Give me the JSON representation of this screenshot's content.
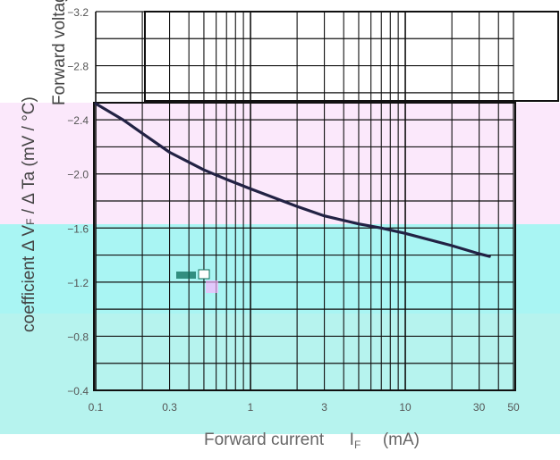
{
  "chart_data": {
    "type": "line",
    "xscale": "log",
    "xlim": [
      0.1,
      50
    ],
    "ylim": [
      -3.2,
      -0.4
    ],
    "x_ticks": [
      {
        "value": 0.1,
        "label": "0.1"
      },
      {
        "value": 0.3,
        "label": "0.3"
      },
      {
        "value": 1,
        "label": "1"
      },
      {
        "value": 3,
        "label": "3"
      },
      {
        "value": 10,
        "label": "10"
      },
      {
        "value": 30,
        "label": "30"
      },
      {
        "value": 50,
        "label": "50"
      }
    ],
    "y_ticks": [
      {
        "value": -3.2,
        "label": "−3.2"
      },
      {
        "value": -2.8,
        "label": "−2.8"
      },
      {
        "value": -2.4,
        "label": "−2.4"
      },
      {
        "value": -2.0,
        "label": "−2.0"
      },
      {
        "value": -1.6,
        "label": "−1.6"
      },
      {
        "value": -1.2,
        "label": "−1.2"
      },
      {
        "value": -0.8,
        "label": "−0.8"
      },
      {
        "value": -0.4,
        "label": "−0.4"
      }
    ],
    "xlabel": {
      "main": "Forward current",
      "symbol": "I",
      "sub": "F",
      "unit": "(mA)"
    },
    "ylabel": {
      "line1": "Forward voltage temperature",
      "line2": "coefficient  Δ V",
      "line2_sub": "F",
      "line2_rest": " /  Δ Ta (mV / °C)"
    },
    "grid": true,
    "series": [
      {
        "x": [
          0.1,
          0.15,
          0.2,
          0.3,
          0.5,
          0.7,
          1,
          2,
          3,
          5,
          7,
          10,
          20,
          30,
          35
        ],
        "y": [
          -2.52,
          -2.4,
          -2.3,
          -2.16,
          -2.03,
          -1.96,
          -1.89,
          -1.76,
          -1.69,
          -1.63,
          -1.6,
          -1.56,
          -1.47,
          -1.41,
          -1.39
        ],
        "color": "#222244"
      }
    ]
  },
  "colors": {
    "band_pink": "#fbe8fb",
    "band_cyan": "#a9f5f3",
    "band_teal_bottom": "#b6f3ee",
    "grid": "#111111",
    "curve": "#222244"
  }
}
